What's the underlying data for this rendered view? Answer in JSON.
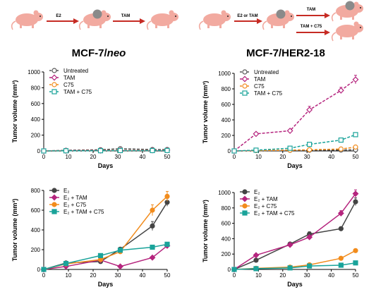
{
  "figure": {
    "headings": [
      {
        "prefix": "MCF-7/",
        "italic": "neo"
      },
      {
        "prefix": "MCF-7/HER2-18",
        "italic": ""
      }
    ],
    "schemes": [
      {
        "arrows": [
          {
            "top": "E2",
            "bottom": ""
          },
          {
            "top": "TAM",
            "bottom": ""
          }
        ]
      },
      {
        "arrows": [
          {
            "top": "E2 or TAM",
            "bottom": ""
          },
          {
            "top": "TAM",
            "bottom": "TAM + C75"
          }
        ]
      }
    ]
  },
  "chart_data": [
    {
      "type": "line",
      "position": "top-left",
      "xlabel": "Days",
      "ylabel": "Tumor volume (mm³)",
      "xlim": [
        0,
        50
      ],
      "xticks": [
        0,
        10,
        20,
        30,
        40,
        50
      ],
      "ylim": [
        0,
        1000
      ],
      "yticks": [
        0,
        200,
        400,
        600,
        800,
        1000
      ],
      "line_style": "dashed",
      "legend_placement": "top-left",
      "series": [
        {
          "name": "Untreated",
          "color": "#555555",
          "marker": "circle",
          "x": [
            0,
            9,
            23,
            31,
            44,
            50
          ],
          "y": [
            0,
            8,
            15,
            28,
            18,
            18
          ],
          "err": [
            0,
            2,
            3,
            5,
            4,
            4
          ]
        },
        {
          "name": "TAM",
          "color": "#b5257e",
          "marker": "diamond",
          "x": [
            0,
            9,
            23,
            31,
            44,
            50
          ],
          "y": [
            0,
            3,
            5,
            8,
            8,
            10
          ],
          "err": [
            0,
            1,
            1,
            2,
            2,
            2
          ]
        },
        {
          "name": "C75",
          "color": "#f28c1c",
          "marker": "circle",
          "x": [
            0,
            9,
            23,
            31,
            44,
            50
          ],
          "y": [
            0,
            2,
            4,
            6,
            6,
            8
          ],
          "err": [
            0,
            1,
            1,
            1,
            1,
            2
          ]
        },
        {
          "name": "TAM + C75",
          "color": "#1aa39a",
          "marker": "square",
          "x": [
            0,
            9,
            23,
            31,
            44,
            50
          ],
          "y": [
            0,
            2,
            3,
            5,
            5,
            6
          ],
          "err": [
            0,
            1,
            1,
            1,
            1,
            1
          ]
        }
      ]
    },
    {
      "type": "line",
      "position": "top-right",
      "xlabel": "Days",
      "ylabel": "Tumor volume (mm³)",
      "xlim": [
        0,
        50
      ],
      "xticks": [
        0,
        10,
        20,
        30,
        40,
        50
      ],
      "ylim": [
        0,
        1000
      ],
      "yticks": [
        0,
        200,
        400,
        600,
        800,
        1000
      ],
      "line_style": "dashed",
      "legend_placement": "top-left",
      "series": [
        {
          "name": "Untreated",
          "color": "#555555",
          "marker": "circle",
          "x": [
            0,
            9,
            23,
            31,
            44,
            50
          ],
          "y": [
            0,
            5,
            8,
            10,
            12,
            15
          ],
          "err": [
            0,
            2,
            2,
            3,
            3,
            3
          ]
        },
        {
          "name": "TAM",
          "color": "#b5257e",
          "marker": "diamond",
          "x": [
            0,
            9,
            23,
            31,
            44,
            50
          ],
          "y": [
            0,
            220,
            260,
            530,
            780,
            920
          ],
          "err": [
            0,
            12,
            15,
            45,
            40,
            55
          ]
        },
        {
          "name": "C75",
          "color": "#f28c1c",
          "marker": "circle",
          "x": [
            0,
            9,
            23,
            31,
            44,
            50
          ],
          "y": [
            0,
            5,
            10,
            15,
            25,
            50
          ],
          "err": [
            0,
            2,
            3,
            3,
            5,
            6
          ]
        },
        {
          "name": "TAM + C75",
          "color": "#1aa39a",
          "marker": "square",
          "x": [
            0,
            9,
            23,
            31,
            44,
            50
          ],
          "y": [
            0,
            10,
            35,
            85,
            140,
            210
          ],
          "err": [
            0,
            3,
            5,
            10,
            15,
            20
          ]
        }
      ]
    },
    {
      "type": "line",
      "position": "bottom-left",
      "xlabel": "Days",
      "ylabel": "Tumor volume (mm³)",
      "xlim": [
        0,
        50
      ],
      "xticks": [
        0,
        10,
        20,
        30,
        40,
        50
      ],
      "ylim": [
        0,
        800
      ],
      "yticks": [
        0,
        200,
        400,
        600,
        800
      ],
      "line_style": "solid",
      "legend_placement": "top-left",
      "series": [
        {
          "name": "E₂",
          "color": "#444444",
          "marker": "circle",
          "x": [
            0,
            9,
            23,
            31,
            44,
            50
          ],
          "y": [
            0,
            65,
            80,
            205,
            440,
            680
          ],
          "err": [
            0,
            8,
            10,
            20,
            45,
            40
          ]
        },
        {
          "name": "E₂ + TAM",
          "color": "#b5257e",
          "marker": "diamond",
          "x": [
            0,
            9,
            23,
            31,
            44,
            50
          ],
          "y": [
            0,
            30,
            95,
            30,
            120,
            240
          ],
          "err": [
            0,
            5,
            10,
            5,
            10,
            15
          ]
        },
        {
          "name": "E₂ + C75",
          "color": "#f28c1c",
          "marker": "circle",
          "x": [
            0,
            9,
            23,
            31,
            44,
            50
          ],
          "y": [
            0,
            55,
            100,
            180,
            600,
            740
          ],
          "err": [
            0,
            6,
            10,
            15,
            55,
            50
          ]
        },
        {
          "name": "E₂ + TAM + C75",
          "color": "#1aa39a",
          "marker": "square",
          "x": [
            0,
            9,
            23,
            31,
            44,
            50
          ],
          "y": [
            0,
            60,
            140,
            195,
            225,
            255
          ],
          "err": [
            0,
            6,
            10,
            12,
            12,
            14
          ]
        }
      ]
    },
    {
      "type": "line",
      "position": "bottom-right",
      "xlabel": "Days",
      "ylabel": "Tumor volume (mm³)",
      "xlim": [
        0,
        50
      ],
      "xticks": [
        0,
        10,
        20,
        30,
        40,
        50
      ],
      "ylim": [
        0,
        1000
      ],
      "yticks": [
        0,
        200,
        400,
        600,
        800,
        1000
      ],
      "line_style": "solid",
      "legend_placement": "top-left",
      "series": [
        {
          "name": "E₂",
          "color": "#444444",
          "marker": "circle",
          "x": [
            0,
            9,
            23,
            31,
            44,
            50
          ],
          "y": [
            0,
            120,
            330,
            460,
            530,
            880
          ],
          "err": [
            0,
            10,
            20,
            30,
            25,
            50
          ]
        },
        {
          "name": "E₂ + TAM",
          "color": "#b5257e",
          "marker": "diamond",
          "x": [
            0,
            9,
            23,
            31,
            44,
            50
          ],
          "y": [
            0,
            185,
            320,
            420,
            730,
            985
          ],
          "err": [
            0,
            10,
            20,
            20,
            35,
            50
          ]
        },
        {
          "name": "E₂ + C75",
          "color": "#f28c1c",
          "marker": "circle",
          "x": [
            0,
            9,
            23,
            31,
            44,
            50
          ],
          "y": [
            0,
            15,
            30,
            60,
            145,
            245
          ],
          "err": [
            0,
            3,
            5,
            6,
            10,
            12
          ]
        },
        {
          "name": "E₂ + TAM + C75",
          "color": "#1aa39a",
          "marker": "square",
          "x": [
            0,
            9,
            23,
            31,
            44,
            50
          ],
          "y": [
            0,
            10,
            20,
            45,
            55,
            85
          ],
          "err": [
            0,
            2,
            3,
            5,
            6,
            8
          ]
        }
      ]
    }
  ]
}
